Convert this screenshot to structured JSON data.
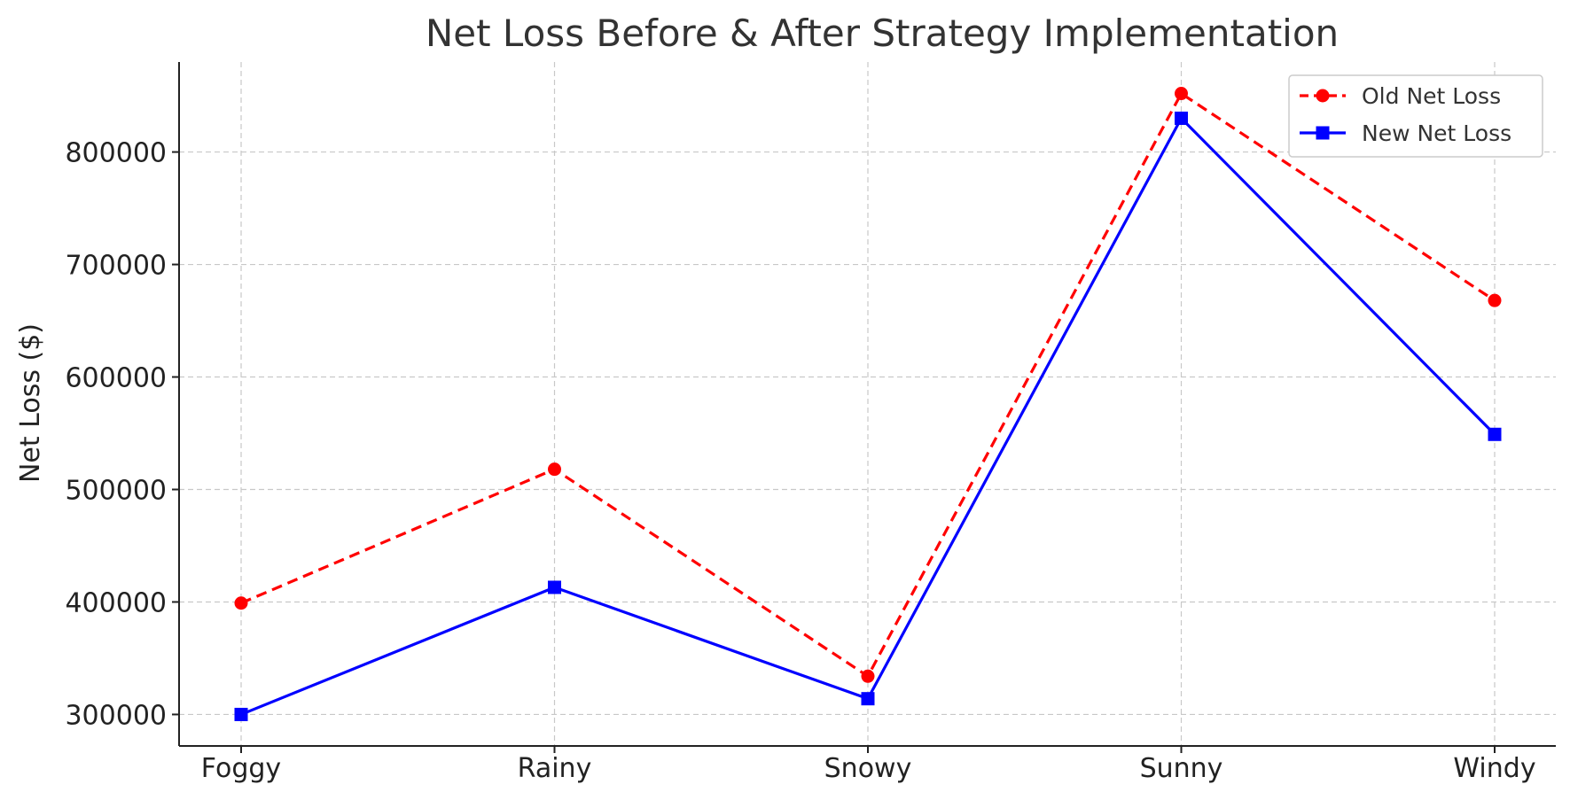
{
  "chart_data": {
    "type": "line",
    "title": "Net Loss Before & After Strategy Implementation",
    "xlabel": "",
    "ylabel": "Net Loss ($)",
    "categories": [
      "Foggy",
      "Rainy",
      "Snowy",
      "Sunny",
      "Windy"
    ],
    "yticks": [
      300000,
      400000,
      500000,
      600000,
      700000,
      800000
    ],
    "ylim": [
      272000,
      880000
    ],
    "grid": true,
    "legend_position": "top-right",
    "series": [
      {
        "name": "Old Net Loss",
        "values": [
          399000,
          518000,
          334000,
          852000,
          668000
        ],
        "color": "#ff0000",
        "line_style": "dashed",
        "marker": "circle"
      },
      {
        "name": "New Net Loss",
        "values": [
          300000,
          413000,
          314000,
          830000,
          549000
        ],
        "color": "#0000ff",
        "line_style": "solid",
        "marker": "square"
      }
    ]
  }
}
